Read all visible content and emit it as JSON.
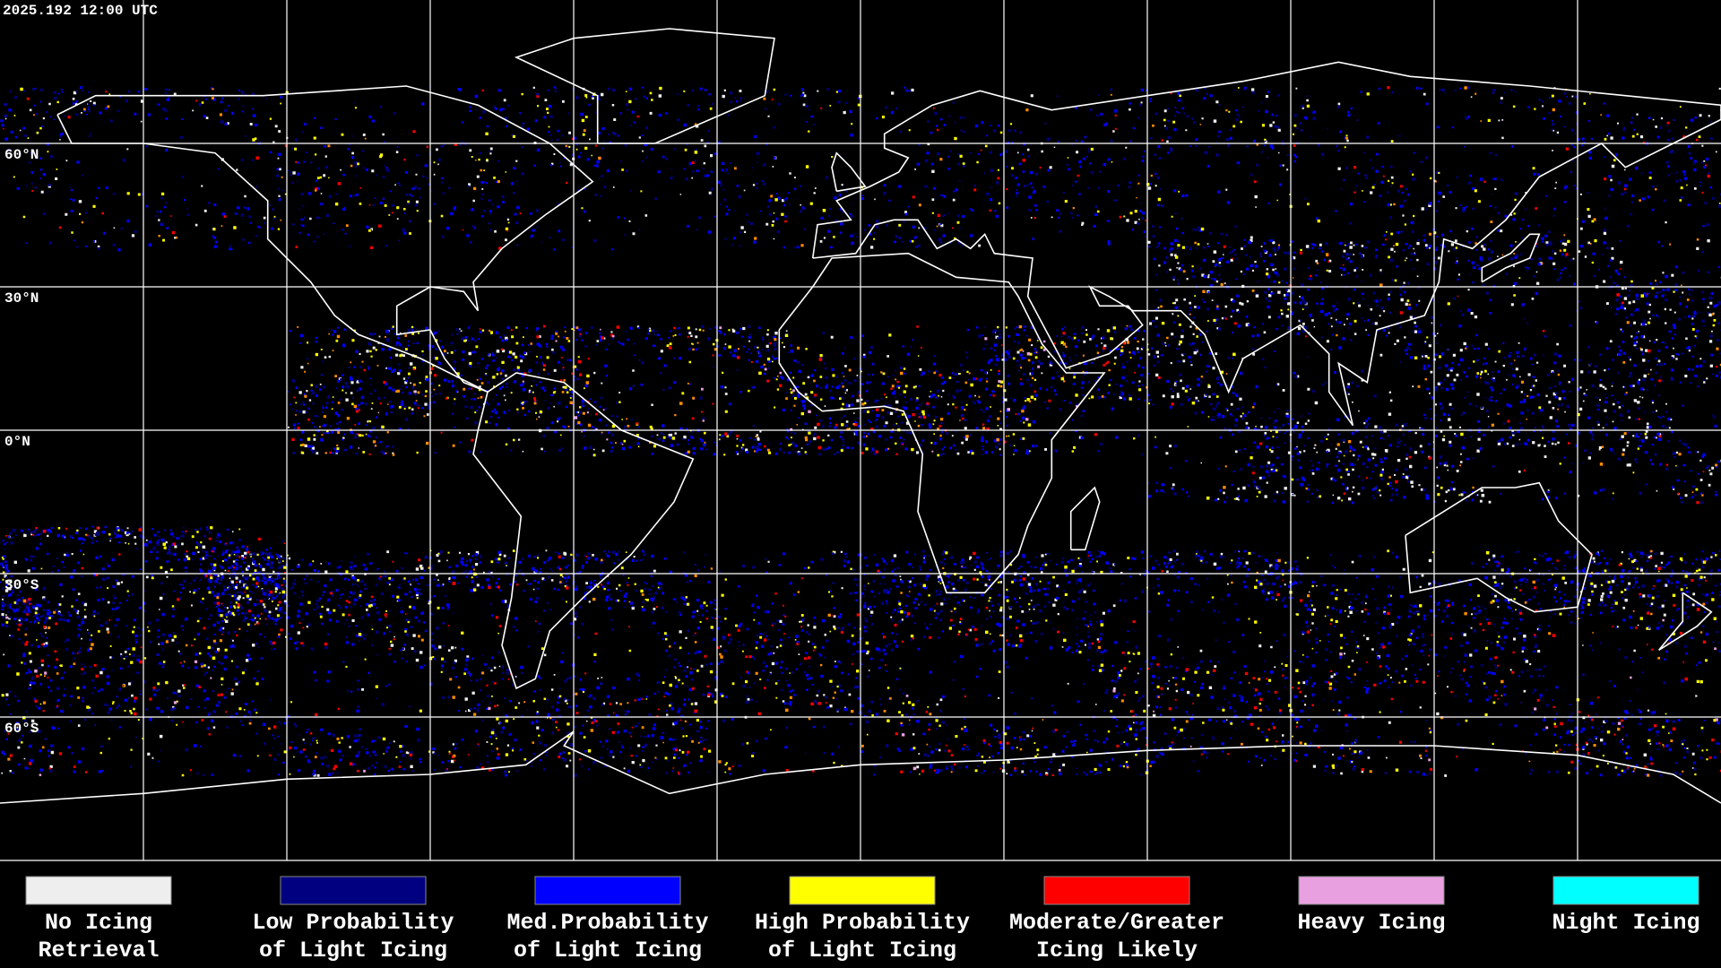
{
  "timestamp": "2025.192 12:00 UTC",
  "latitude_labels": [
    "60°N",
    "30°N",
    "0°N",
    "30°S",
    "60°S"
  ],
  "legend": [
    {
      "color": "#eeeeee",
      "label_lines": [
        "No Icing",
        "Retrieval"
      ]
    },
    {
      "color": "#000080",
      "label_lines": [
        "Low Probability",
        "of Light Icing"
      ]
    },
    {
      "color": "#0000ff",
      "label_lines": [
        "Med.Probability",
        "of Light Icing"
      ]
    },
    {
      "color": "#ffff00",
      "label_lines": [
        "High Probability",
        "of Light Icing"
      ]
    },
    {
      "color": "#ff0000",
      "label_lines": [
        "Moderate/Greater",
        "Icing Likely"
      ]
    },
    {
      "color": "#e8a0e0",
      "label_lines": [
        "Heavy Icing"
      ]
    },
    {
      "color": "#00ffff",
      "label_lines": [
        "Night Icing"
      ]
    }
  ]
}
